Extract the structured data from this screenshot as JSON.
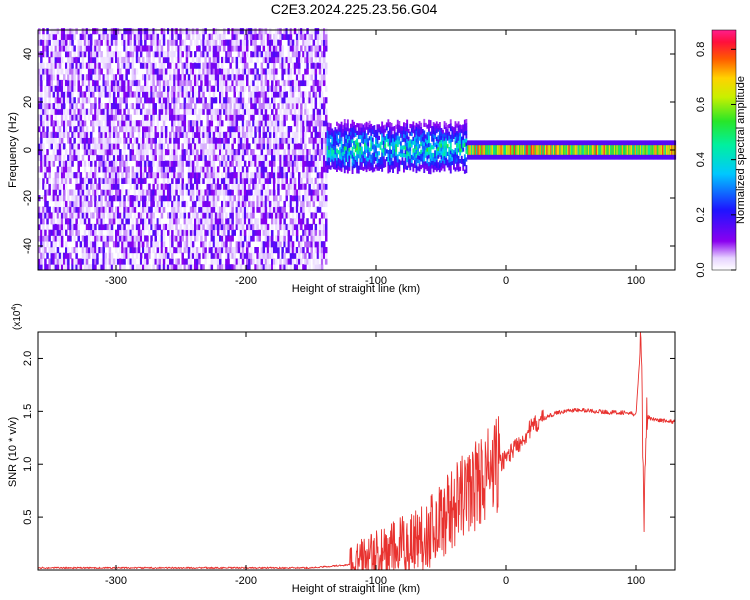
{
  "title": "C2E3.2024.225.23.56.G04",
  "colors": {
    "snr_line": "#e8322f",
    "axis": "#000000",
    "background": "#ffffff"
  },
  "chart_data": [
    {
      "type": "heatmap",
      "xlabel": "Height of straight line (km)",
      "ylabel": "Frequency (Hz)",
      "xlim": [
        -360,
        130
      ],
      "ylim": [
        -50,
        50
      ],
      "x_ticks": [
        "-300",
        "-200",
        "-100",
        "0",
        "100"
      ],
      "y_ticks": [
        "-40",
        "-20",
        "0",
        "20",
        "40"
      ],
      "grid": false,
      "colorbar": {
        "label": "Normalized spectral amplitude",
        "range": [
          0,
          0.87
        ],
        "ticks": [
          "0.0",
          "0.2",
          "0.4",
          "0.6",
          "0.8"
        ],
        "colormap": "rainbow (white-violet-blue-cyan-green-yellow-red-magenta)"
      },
      "regions": [
        {
          "x_range": [
            -360,
            -138
          ],
          "freq_range": [
            -50,
            50
          ],
          "amplitude": 0.05,
          "description": "broadband noise"
        },
        {
          "x_range": [
            -138,
            -30
          ],
          "freq_range": [
            -6,
            8
          ],
          "amplitude": 0.3
        },
        {
          "x_range": [
            -30,
            130
          ],
          "freq_range": [
            -2,
            2
          ],
          "amplitude": 0.6,
          "peak_amplitude": 0.87
        }
      ]
    },
    {
      "type": "line",
      "xlabel": "Height of straight line (km)",
      "ylabel": "SNR (10 * v/v)",
      "y_scale_label": "(x10",
      "y_scale_exponent": "4",
      "xlim": [
        -360,
        130
      ],
      "ylim": [
        0,
        2.25
      ],
      "x_ticks": [
        "-300",
        "-200",
        "-100",
        "0",
        "100"
      ],
      "y_ticks": [
        "0.5",
        "1.0",
        "1.5",
        "2.0"
      ],
      "grid": false,
      "series": [
        {
          "x": [
            -360,
            -300,
            -250,
            -200,
            -150,
            -120,
            -100,
            -80,
            -60,
            -40,
            -20,
            -5,
            10,
            20,
            30,
            40,
            50,
            60,
            70,
            80,
            90,
            100,
            104,
            106,
            108,
            115,
            130
          ],
          "y": [
            0.02,
            0.02,
            0.02,
            0.02,
            0.02,
            0.05,
            0.12,
            0.22,
            0.35,
            0.6,
            0.85,
            1.0,
            1.2,
            1.35,
            1.44,
            1.49,
            1.51,
            1.51,
            1.5,
            1.49,
            1.49,
            1.47,
            2.2,
            0.42,
            1.45,
            1.42,
            1.4
          ]
        }
      ]
    }
  ]
}
